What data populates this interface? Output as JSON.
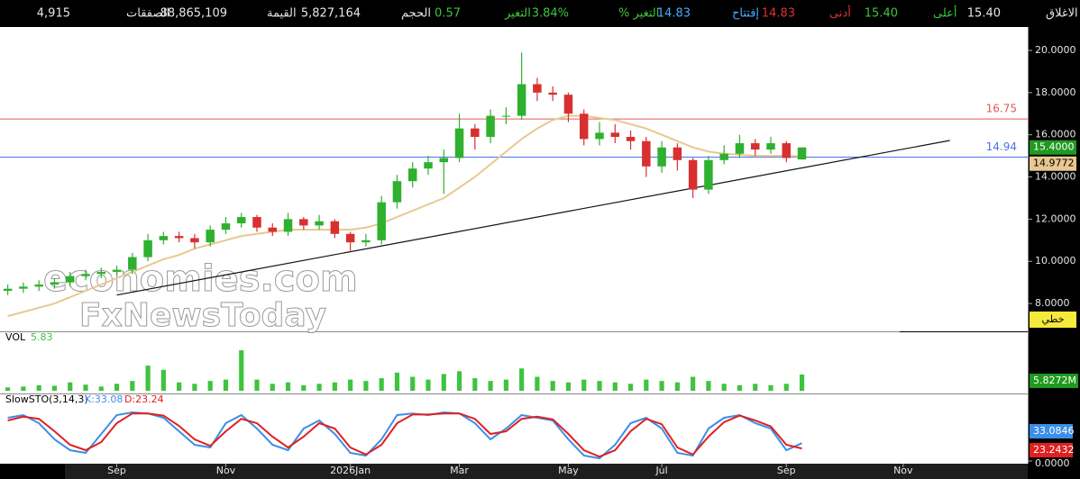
{
  "header": {
    "items": [
      {
        "label": "الاغلاق",
        "value": "15.40",
        "color": "#e6e6e6"
      },
      {
        "label": "أعلى",
        "value": "15.40",
        "color": "#3ec43e"
      },
      {
        "label": "أدنى",
        "value": "14.83",
        "color": "#e03030"
      },
      {
        "label": "إفتتاح",
        "value": "14.83",
        "color": "#4aa8ff"
      },
      {
        "label": "التغير %",
        "value": "3.84%",
        "color": "#3ec43e"
      },
      {
        "label": "التغير",
        "value": "0.57",
        "color": "#3ec43e"
      },
      {
        "label": "الحجم",
        "value": "5,827,164",
        "color": "#e6e6e6"
      },
      {
        "label": "القيمة",
        "value": "88,865,109",
        "color": "#e6e6e6"
      },
      {
        "label": "الصفقات",
        "value": "4,915",
        "color": "#e6e6e6"
      }
    ]
  },
  "chart_data": [
    {
      "type": "candlestick",
      "open": [
        8.6,
        8.7,
        8.8,
        8.9,
        9.0,
        9.3,
        9.4,
        9.5,
        9.6,
        10.2,
        11.0,
        11.2,
        11.1,
        10.9,
        11.5,
        11.8,
        12.1,
        11.6,
        11.4,
        12.0,
        11.7,
        11.9,
        11.3,
        10.9,
        11.0,
        12.8,
        13.8,
        14.4,
        14.7,
        14.9,
        16.3,
        15.9,
        16.9,
        16.9,
        18.4,
        18.0,
        17.9,
        17.0,
        15.8,
        16.1,
        15.9,
        15.7,
        14.5,
        15.4,
        14.8,
        13.4,
        14.8,
        15.1,
        15.6,
        15.3,
        15.6,
        14.83
      ],
      "high": [
        8.9,
        9.0,
        9.1,
        9.2,
        9.5,
        9.6,
        9.7,
        9.8,
        10.4,
        11.3,
        11.4,
        11.4,
        11.3,
        11.7,
        12.1,
        12.3,
        12.2,
        11.8,
        12.3,
        12.1,
        12.2,
        12.0,
        11.4,
        11.3,
        13.1,
        14.1,
        14.7,
        15.0,
        15.3,
        17.0,
        16.5,
        17.2,
        17.3,
        19.9,
        18.7,
        18.3,
        18.0,
        17.2,
        16.6,
        16.5,
        16.2,
        15.9,
        15.7,
        15.6,
        14.9,
        15.0,
        15.5,
        16.0,
        15.8,
        15.9,
        15.7,
        15.4
      ],
      "low": [
        8.4,
        8.5,
        8.6,
        8.7,
        8.8,
        9.1,
        9.2,
        9.3,
        9.4,
        10.0,
        10.8,
        10.9,
        10.6,
        10.7,
        11.3,
        11.6,
        11.4,
        11.2,
        11.2,
        11.5,
        11.5,
        11.1,
        10.5,
        10.7,
        10.8,
        12.5,
        13.5,
        14.1,
        13.2,
        14.7,
        15.3,
        15.6,
        16.5,
        16.7,
        17.6,
        17.6,
        16.6,
        15.5,
        15.5,
        15.6,
        15.3,
        14.0,
        14.2,
        14.3,
        13.0,
        13.2,
        14.6,
        14.9,
        15.0,
        15.1,
        14.7,
        14.83
      ],
      "close": [
        8.7,
        8.8,
        8.9,
        9.0,
        9.3,
        9.4,
        9.5,
        9.6,
        10.2,
        11.0,
        11.2,
        11.1,
        10.9,
        11.5,
        11.8,
        12.1,
        11.6,
        11.4,
        12.0,
        11.7,
        11.9,
        11.3,
        10.9,
        11.0,
        12.8,
        13.8,
        14.4,
        14.7,
        14.9,
        16.3,
        15.9,
        16.9,
        16.9,
        18.4,
        18.0,
        17.9,
        17.0,
        15.8,
        16.1,
        15.9,
        15.7,
        14.5,
        15.4,
        14.8,
        13.4,
        14.8,
        15.1,
        15.6,
        15.3,
        15.6,
        14.9,
        15.4
      ],
      "up_color": "#2fb02f",
      "down_color": "#d83030",
      "ma": {
        "color": "#e8c890",
        "values": [
          7.4,
          7.6,
          7.8,
          8.0,
          8.3,
          8.6,
          8.9,
          9.2,
          9.5,
          9.8,
          10.1,
          10.3,
          10.6,
          10.8,
          11.0,
          11.2,
          11.3,
          11.4,
          11.5,
          11.5,
          11.5,
          11.5,
          11.5,
          11.6,
          11.8,
          12.1,
          12.4,
          12.7,
          13.0,
          13.5,
          14.0,
          14.6,
          15.2,
          15.8,
          16.3,
          16.7,
          16.9,
          16.9,
          16.8,
          16.7,
          16.5,
          16.3,
          16.0,
          15.7,
          15.4,
          15.2,
          15.1,
          15.05,
          15.0,
          15.0,
          15.0,
          14.98
        ]
      },
      "hlines": [
        {
          "value": 16.75,
          "color": "#e05a5a"
        },
        {
          "value": 14.94,
          "color": "#4a74e8"
        }
      ],
      "trendline": {
        "x": [
          7,
          60.5
        ],
        "values": [
          8.4,
          15.73
        ],
        "color": "#111111"
      },
      "xlim": [
        -0.5,
        65.5
      ],
      "ylim": [
        6.68,
        21.11
      ],
      "yticks": [
        {
          "value": 8,
          "label": "8.0000"
        },
        {
          "value": 10,
          "label": "10.0000"
        },
        {
          "value": 12,
          "label": "12.0000"
        },
        {
          "value": 14,
          "label": "14.0000"
        },
        {
          "value": 16,
          "label": "16.0000"
        },
        {
          "value": 18,
          "label": "18.0000"
        },
        {
          "value": 20,
          "label": "20.0000"
        }
      ],
      "last_price_label": "15.4000",
      "last_price_color": "#1f9a1f",
      "ma_label": "14.9772",
      "mode_label": "خطي",
      "watermark": [
        "economies.com",
        "FxNewsToday"
      ]
    },
    {
      "type": "bar",
      "title": "VOL",
      "color": "#3ec43e",
      "values": [
        1.2,
        1.5,
        2.0,
        1.8,
        3.0,
        2.2,
        1.5,
        2.5,
        3.5,
        9.0,
        7.5,
        3.0,
        2.5,
        3.5,
        4.0,
        14.5,
        4.0,
        2.5,
        3.0,
        2.0,
        2.5,
        3.0,
        4.0,
        3.5,
        4.5,
        6.5,
        5.0,
        4.0,
        6.0,
        7.0,
        4.5,
        3.5,
        4.0,
        8.0,
        5.0,
        3.5,
        3.0,
        4.0,
        3.5,
        3.0,
        2.5,
        4.0,
        3.5,
        3.0,
        5.0,
        3.5,
        2.5,
        2.0,
        2.5,
        2.0,
        2.5,
        5.83
      ],
      "xlim": [
        -0.5,
        65.5
      ],
      "ylim": [
        0,
        20
      ],
      "last_label": "5.8272M"
    },
    {
      "type": "line",
      "title": "SlowSTO(3,14,3)",
      "series": [
        {
          "label": "K:33.08",
          "color": "#3b8fe8",
          "last_label": "33.0846",
          "values": [
            80,
            85,
            70,
            40,
            20,
            15,
            50,
            85,
            90,
            88,
            80,
            55,
            30,
            25,
            70,
            85,
            60,
            30,
            20,
            60,
            75,
            50,
            15,
            10,
            40,
            85,
            88,
            85,
            90,
            88,
            70,
            40,
            60,
            85,
            80,
            75,
            40,
            10,
            5,
            30,
            70,
            80,
            60,
            15,
            10,
            60,
            80,
            85,
            70,
            60,
            20,
            33.08
          ]
        },
        {
          "label": "D:23.24",
          "color": "#e02020",
          "last_label": "23.2432",
          "values": [
            75,
            82,
            78,
            55,
            30,
            20,
            35,
            70,
            88,
            88,
            84,
            65,
            40,
            28,
            55,
            78,
            70,
            45,
            25,
            45,
            70,
            60,
            25,
            12,
            30,
            70,
            86,
            86,
            88,
            88,
            78,
            50,
            55,
            78,
            82,
            77,
            50,
            20,
            8,
            20,
            55,
            78,
            68,
            25,
            12,
            45,
            72,
            84,
            75,
            64,
            30,
            23.24
          ]
        }
      ],
      "xlim": [
        -0.5,
        65.5
      ],
      "ylim": [
        0,
        100
      ],
      "yticks": [
        {
          "value": 0,
          "label": "0.0000"
        }
      ],
      "xticks": [
        {
          "value": 7,
          "label": "Sep"
        },
        {
          "value": 14,
          "label": "Nov"
        },
        {
          "value": 22,
          "label": "2026Jan"
        },
        {
          "value": 29,
          "label": "Mar"
        },
        {
          "value": 36,
          "label": "May"
        },
        {
          "value": 42,
          "label": "Jul"
        },
        {
          "value": 50,
          "label": "Sep"
        },
        {
          "value": 57.5,
          "label": "Nov"
        }
      ]
    }
  ]
}
